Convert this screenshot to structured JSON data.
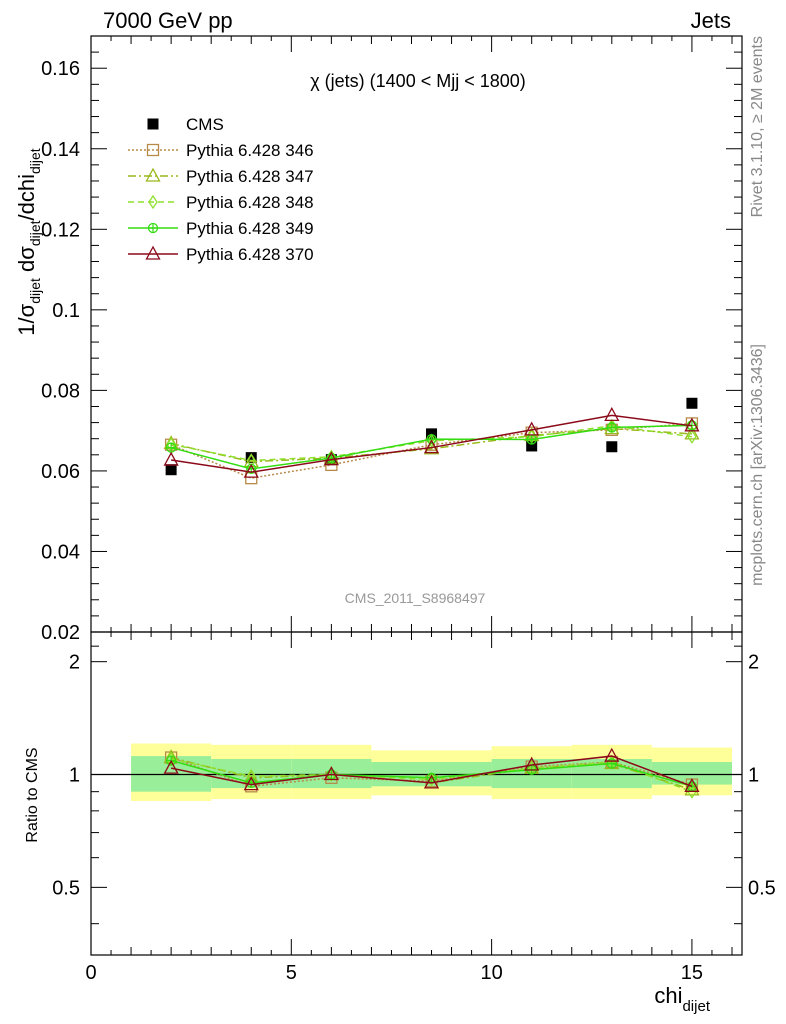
{
  "header": {
    "left": "7000 GeV pp",
    "right": "Jets"
  },
  "side_labels": {
    "top": "Rivet 3.1.10, ≥ 2M events",
    "bottom": "mcplots.cern.ch [arXiv:1306.3436]"
  },
  "colors": {
    "cms": "#000000",
    "p346": "#b88a4a",
    "p347": "#99b81a",
    "p348": "#8fe02e",
    "p349": "#33dd11",
    "p370": "#8b0a1a",
    "band_inner": "#99ee99",
    "band_outer": "#ffff99"
  },
  "chart_data": [
    {
      "type": "scatter",
      "title": "χ (jets) (1400 < Mjj < 1800)",
      "ylabel": "1/σdijet dσdijet/dchidijet",
      "watermark": "CMS_2011_S8968497",
      "xlim": [
        0,
        16.25
      ],
      "ylim": [
        0.02,
        0.168
      ],
      "y_ticks": [
        "0.02",
        "0.04",
        "0.06",
        "0.08",
        "0.1",
        "0.12",
        "0.14",
        "0.16"
      ],
      "legend_position": "top-left",
      "x": [
        2,
        4,
        6,
        8.5,
        11,
        13,
        15
      ],
      "bin_edges": [
        1,
        3,
        5,
        7,
        10,
        12,
        14,
        16
      ],
      "series": [
        {
          "name": "CMS",
          "key": "cms",
          "marker": "square-filled",
          "line": "none",
          "values": [
            0.0603,
            0.0633,
            0.0628,
            0.0692,
            0.0662,
            0.066,
            0.0768
          ]
        },
        {
          "name": "Pythia 6.428 346",
          "key": "p346",
          "marker": "square-open",
          "line": "dotted",
          "values": [
            0.0665,
            0.0582,
            0.0615,
            0.0665,
            0.0695,
            0.0702,
            0.0718
          ]
        },
        {
          "name": "Pythia 6.428 347",
          "key": "p347",
          "marker": "triangle-open",
          "line": "dashdot",
          "values": [
            0.0668,
            0.0623,
            0.0632,
            0.0655,
            0.0688,
            0.0705,
            0.0692
          ]
        },
        {
          "name": "Pythia 6.428 348",
          "key": "p348",
          "marker": "diamond-open",
          "line": "dashed",
          "values": [
            0.0666,
            0.0626,
            0.0635,
            0.0675,
            0.0685,
            0.0712,
            0.0685
          ]
        },
        {
          "name": "Pythia 6.428 349",
          "key": "p349",
          "marker": "cross-circle",
          "line": "solid",
          "values": [
            0.0658,
            0.0605,
            0.0632,
            0.0679,
            0.0678,
            0.0708,
            0.0713
          ]
        },
        {
          "name": "Pythia 6.428 370",
          "key": "p370",
          "marker": "triangle-open",
          "line": "solid",
          "values": [
            0.0627,
            0.0597,
            0.0628,
            0.0658,
            0.0702,
            0.0738,
            0.0712
          ]
        }
      ]
    },
    {
      "type": "line",
      "ylabel": "Ratio to CMS",
      "xlabel": "chidijet",
      "xlim": [
        0,
        16.25
      ],
      "x_ticks": [
        "0",
        "5",
        "10",
        "15"
      ],
      "ylim": [
        0.33,
        2.4
      ],
      "y_scale": "log",
      "y_ticks": [
        "0.5",
        "1",
        "2"
      ],
      "x": [
        2,
        4,
        6,
        8.5,
        11,
        13,
        15
      ],
      "bin_edges": [
        1,
        3,
        5,
        7,
        10,
        12,
        14,
        16
      ],
      "band_inner": [
        [
          0.9,
          1.12
        ],
        [
          0.92,
          1.1
        ],
        [
          0.92,
          1.1
        ],
        [
          0.93,
          1.08
        ],
        [
          0.92,
          1.1
        ],
        [
          0.92,
          1.1
        ],
        [
          0.94,
          1.08
        ]
      ],
      "band_outer": [
        [
          0.85,
          1.21
        ],
        [
          0.86,
          1.2
        ],
        [
          0.86,
          1.2
        ],
        [
          0.88,
          1.16
        ],
        [
          0.86,
          1.19
        ],
        [
          0.86,
          1.2
        ],
        [
          0.88,
          1.18
        ]
      ],
      "series": [
        {
          "name": "Pythia 6.428 346",
          "key": "p346",
          "marker": "square-open",
          "line": "dotted",
          "values": [
            1.11,
            0.93,
            0.98,
            0.96,
            1.05,
            1.08,
            0.94
          ]
        },
        {
          "name": "Pythia 6.428 347",
          "key": "p347",
          "marker": "triangle-open",
          "line": "dashdot",
          "values": [
            1.11,
            0.98,
            1.0,
            0.95,
            1.04,
            1.07,
            0.91
          ]
        },
        {
          "name": "Pythia 6.428 348",
          "key": "p348",
          "marker": "diamond-open",
          "line": "dashed",
          "values": [
            1.1,
            0.99,
            1.0,
            0.97,
            1.04,
            1.08,
            0.9
          ]
        },
        {
          "name": "Pythia 6.428 349",
          "key": "p349",
          "marker": "cross-circle",
          "line": "solid",
          "values": [
            1.09,
            0.95,
            1.0,
            0.98,
            1.03,
            1.07,
            0.93
          ]
        },
        {
          "name": "Pythia 6.428 370",
          "key": "p370",
          "marker": "triangle-open",
          "line": "solid",
          "values": [
            1.04,
            0.94,
            1.0,
            0.95,
            1.06,
            1.12,
            0.93
          ]
        }
      ]
    }
  ]
}
